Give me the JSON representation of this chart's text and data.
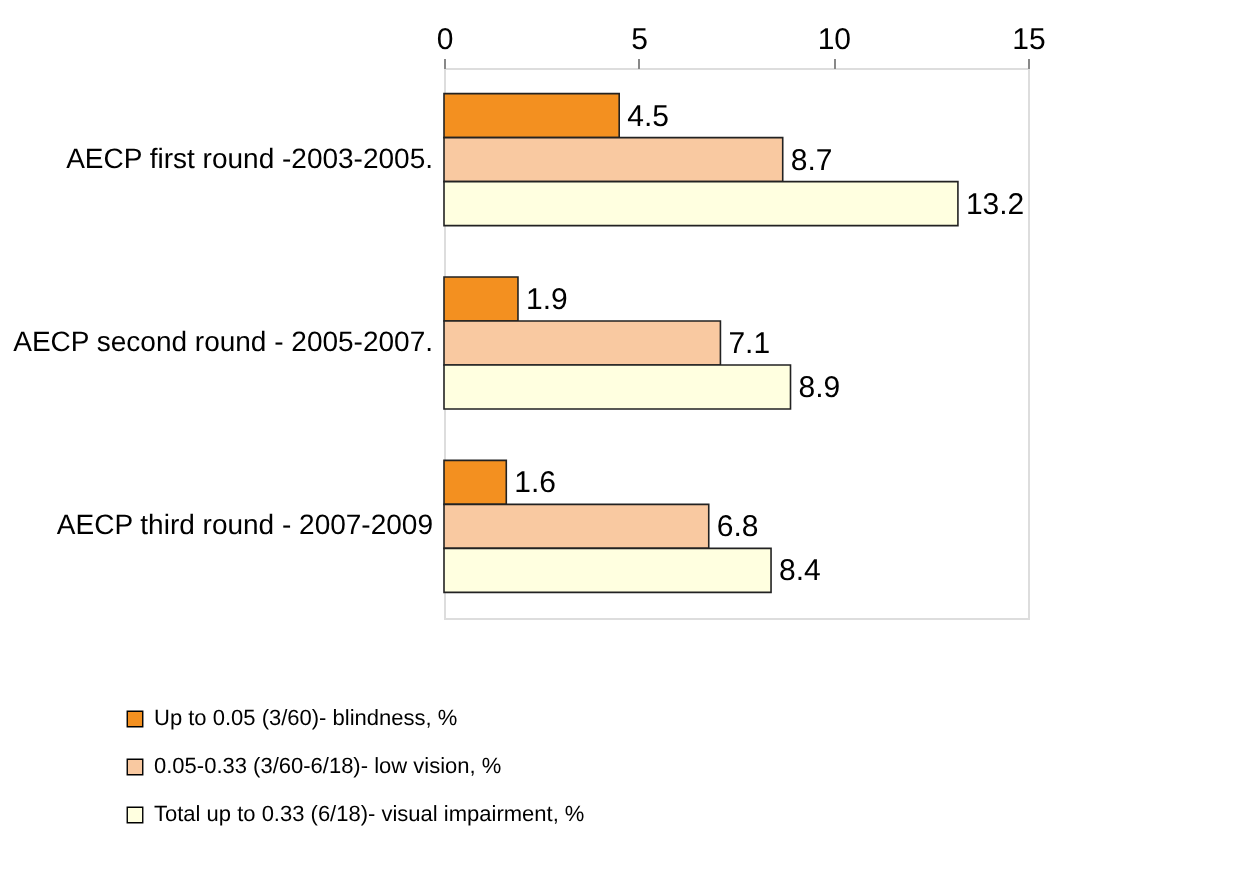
{
  "chart_data": {
    "type": "bar",
    "orientation": "horizontal",
    "categories": [
      "AECP first round -2003-2005.",
      "AECP second round - 2005-2007.",
      "AECP third round  - 2007-2009"
    ],
    "series": [
      {
        "name": "Up to 0.05 (3/60)- blindness, %",
        "color": "#f39020",
        "values": [
          4.5,
          1.9,
          1.6
        ]
      },
      {
        "name": "0.05-0.33 (3/60-6/18)- low vision, %",
        "color": "#f9c9a1",
        "values": [
          8.7,
          7.1,
          6.8
        ]
      },
      {
        "name": "Total up to  0.33 (6/18)- visual impairment, %",
        "color": "#ffffe0",
        "values": [
          13.2,
          8.9,
          8.4
        ]
      }
    ],
    "xlim": [
      0,
      15
    ],
    "xticks": [
      0,
      5,
      10,
      15
    ],
    "data_labels": true,
    "grid": false,
    "legend": "bottom"
  }
}
